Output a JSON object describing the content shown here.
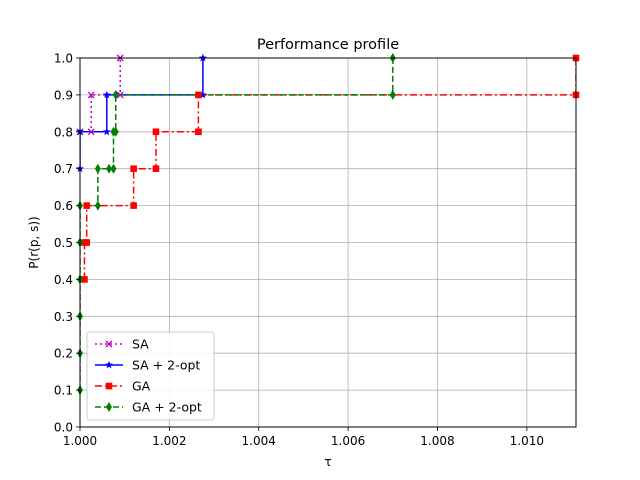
{
  "chart_data": {
    "type": "line",
    "title": "Performance profile",
    "xlabel": "τ",
    "ylabel": "P(r(p, s))",
    "xlim": [
      1.0,
      1.0111
    ],
    "ylim": [
      0.0,
      1.0
    ],
    "xticks": [
      "1.000",
      "1.002",
      "1.004",
      "1.006",
      "1.008",
      "1.010"
    ],
    "yticks": [
      "0.0",
      "0.1",
      "0.2",
      "0.3",
      "0.4",
      "0.5",
      "0.6",
      "0.7",
      "0.8",
      "0.9",
      "1.0"
    ],
    "grid": true,
    "legend_position": "lower-left",
    "series": [
      {
        "name": "SA",
        "color": "#bf00bf",
        "linestyle": "dotted",
        "marker": "x",
        "points": [
          [
            1.0,
            0.8
          ],
          [
            1.00025,
            0.8
          ],
          [
            1.00025,
            0.9
          ],
          [
            1.0009,
            0.9
          ],
          [
            1.0009,
            1.0
          ]
        ]
      },
      {
        "name": "SA + 2-opt",
        "color": "#0000ff",
        "linestyle": "solid",
        "marker": "star",
        "points": [
          [
            1.0,
            0.7
          ],
          [
            1.0,
            0.8
          ],
          [
            1.0006,
            0.8
          ],
          [
            1.0006,
            0.9
          ],
          [
            1.00275,
            0.9
          ],
          [
            1.00275,
            1.0
          ]
        ]
      },
      {
        "name": "GA",
        "color": "#ff0000",
        "linestyle": "dashdot",
        "marker": "square",
        "points": [
          [
            1.0001,
            0.4
          ],
          [
            1.0001,
            0.5
          ],
          [
            1.00015,
            0.5
          ],
          [
            1.00015,
            0.6
          ],
          [
            1.0012,
            0.6
          ],
          [
            1.0012,
            0.7
          ],
          [
            1.0017,
            0.7
          ],
          [
            1.0017,
            0.8
          ],
          [
            1.00265,
            0.8
          ],
          [
            1.00265,
            0.9
          ],
          [
            1.0111,
            0.9
          ],
          [
            1.0111,
            1.0
          ]
        ]
      },
      {
        "name": "GA + 2-opt",
        "color": "#008000",
        "linestyle": "dashed",
        "marker": "diamond",
        "points": [
          [
            1.0,
            0.1
          ],
          [
            1.0,
            0.2
          ],
          [
            1.0,
            0.3
          ],
          [
            1.0,
            0.4
          ],
          [
            1.0,
            0.5
          ],
          [
            1.0,
            0.6
          ],
          [
            1.0004,
            0.6
          ],
          [
            1.0004,
            0.7
          ],
          [
            1.00065,
            0.7
          ],
          [
            1.00075,
            0.7
          ],
          [
            1.00075,
            0.8
          ],
          [
            1.0008,
            0.8
          ],
          [
            1.0008,
            0.9
          ],
          [
            1.007,
            0.9
          ],
          [
            1.007,
            1.0
          ]
        ]
      }
    ]
  }
}
